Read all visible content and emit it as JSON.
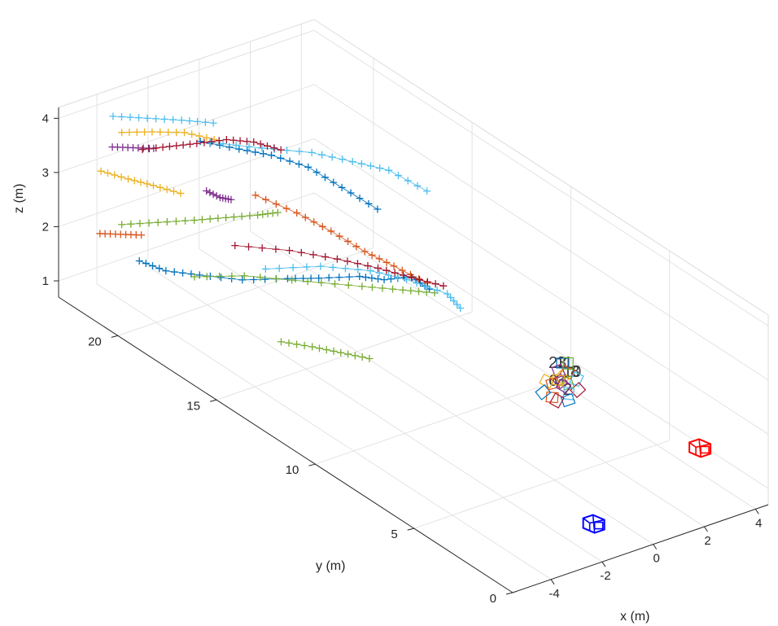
{
  "chart_data": {
    "type": "scatter",
    "title": "",
    "xlabel": "x (m)",
    "ylabel": "y (m)",
    "zlabel": "z (m)",
    "xlim": [
      -5.5,
      4.5
    ],
    "ylim": [
      0,
      23
    ],
    "zlim": [
      0.7,
      4.2
    ],
    "x_ticks": [
      "-4",
      "-2",
      "0",
      "2",
      "4"
    ],
    "y_ticks": [
      "0",
      "5",
      "10",
      "15",
      "20"
    ],
    "z_ticks": [
      "1",
      "2",
      "3",
      "4"
    ],
    "grid": true,
    "marker": "+",
    "series": [
      {
        "color": "#0072BD",
        "points": [
          [
            -3.5,
            21.5,
            1.4
          ],
          [
            -3,
            20.8,
            1.3
          ],
          [
            -2.3,
            20,
            1.3
          ],
          [
            -1.4,
            19,
            1.3
          ],
          [
            -0.4,
            18,
            1.4
          ],
          [
            0.2,
            17.2,
            1.5
          ],
          [
            1.1,
            16.3,
            1.6
          ],
          [
            1.6,
            15.7,
            1.6
          ],
          [
            2.2,
            15.1,
            1.7
          ],
          [
            2.6,
            14.7,
            1.5
          ]
        ]
      },
      {
        "color": "#0072BD",
        "points": [
          [
            -1.5,
            21,
            3.4
          ],
          [
            -0.6,
            20.2,
            3.3
          ],
          [
            0.2,
            19.6,
            3.2
          ],
          [
            1.1,
            18.9,
            3.0
          ],
          [
            1.8,
            18.1,
            2.7
          ],
          [
            2.5,
            17.2,
            2.4
          ]
        ]
      },
      {
        "color": "#D95319",
        "points": [
          [
            -4.5,
            22.2,
            1.9
          ],
          [
            -4,
            21.8,
            1.9
          ],
          [
            -3.5,
            21.4,
            1.9
          ]
        ]
      },
      {
        "color": "#D95319",
        "points": [
          [
            -0.5,
            19.5,
            2.6
          ],
          [
            0.5,
            18.7,
            2.3
          ],
          [
            1.3,
            18,
            2.0
          ],
          [
            2.0,
            17.2,
            1.7
          ],
          [
            2.6,
            16.5,
            1.5
          ],
          [
            3.2,
            15.6,
            1.3
          ]
        ]
      },
      {
        "color": "#EDB120",
        "points": [
          [
            -5,
            21.5,
            3.3
          ],
          [
            -4.4,
            20.9,
            3.2
          ],
          [
            -3.8,
            20.4,
            3.1
          ],
          [
            -3.2,
            19.8,
            3.0
          ]
        ]
      },
      {
        "color": "#EDB120",
        "points": [
          [
            -3.8,
            22,
            3.7
          ],
          [
            -3,
            21.5,
            3.7
          ],
          [
            -2.2,
            20.9,
            3.7
          ],
          [
            -1.5,
            20.3,
            3.6
          ]
        ]
      },
      {
        "color": "#7E2F8E",
        "points": [
          [
            -4.4,
            21.7,
            3.6
          ],
          [
            -3.9,
            21.3,
            3.6
          ],
          [
            -3.4,
            20.9,
            3.6
          ]
        ]
      },
      {
        "color": "#7E2F8E",
        "points": [
          [
            -1.8,
            20.3,
            2.7
          ],
          [
            -1.5,
            20,
            2.6
          ],
          [
            -1.3,
            19.7,
            2.6
          ]
        ]
      },
      {
        "color": "#77AC30",
        "points": [
          [
            -3.8,
            22,
            2.0
          ],
          [
            -3,
            21.2,
            2.1
          ],
          [
            -2.2,
            20.4,
            2.2
          ],
          [
            -1.5,
            19.7,
            2.3
          ],
          [
            -0.8,
            19,
            2.4
          ],
          [
            -0.4,
            18.5,
            2.5
          ]
        ]
      },
      {
        "color": "#77AC30",
        "points": [
          [
            -2.2,
            16,
            1.0
          ],
          [
            -1.6,
            15.2,
            1.0
          ],
          [
            -1.1,
            14.4,
            1.0
          ],
          [
            -0.6,
            13.6,
            1.0
          ]
        ]
      },
      {
        "color": "#77AC30",
        "points": [
          [
            -2.5,
            20,
            1.3
          ],
          [
            -1.4,
            18.9,
            1.4
          ],
          [
            0,
            17.5,
            1.4
          ],
          [
            1.2,
            16.3,
            1.4
          ],
          [
            2.1,
            15.4,
            1.4
          ],
          [
            2.8,
            14.7,
            1.4
          ]
        ]
      },
      {
        "color": "#4DBEEE",
        "points": [
          [
            -3.6,
            22.7,
            3.8
          ],
          [
            -2.8,
            22,
            3.8
          ],
          [
            -2.0,
            21.3,
            3.8
          ],
          [
            -1.3,
            20.6,
            3.8
          ]
        ]
      },
      {
        "color": "#4DBEEE",
        "points": [
          [
            -1.5,
            20.5,
            3.5
          ],
          [
            -0.4,
            19.3,
            3.5
          ],
          [
            0.7,
            18.2,
            3.5
          ],
          [
            1.6,
            17.3,
            3.4
          ],
          [
            2.4,
            16.5,
            3.3
          ],
          [
            3.2,
            15.6,
            3.0
          ]
        ]
      },
      {
        "color": "#4DBEEE",
        "points": [
          [
            -0.8,
            18.6,
            1.5
          ],
          [
            0.5,
            17.5,
            1.6
          ],
          [
            1.6,
            16.4,
            1.6
          ],
          [
            2.4,
            15.6,
            1.5
          ],
          [
            3.3,
            14.7,
            1.3
          ],
          [
            3.5,
            14.3,
            1.1
          ]
        ]
      },
      {
        "color": "#A2142F",
        "points": [
          [
            -3.3,
            21.6,
            3.4
          ],
          [
            -2.7,
            21,
            3.5
          ],
          [
            -2.1,
            20.4,
            3.6
          ],
          [
            -1.4,
            19.8,
            3.7
          ],
          [
            -0.8,
            19.2,
            3.7
          ],
          [
            -0.2,
            18.6,
            3.6
          ]
        ]
      },
      {
        "color": "#A2142F",
        "points": [
          [
            -1.3,
            19.5,
            1.8
          ],
          [
            -0.1,
            18.3,
            1.8
          ],
          [
            1.0,
            17.3,
            1.7
          ],
          [
            1.9,
            16.4,
            1.6
          ],
          [
            2.6,
            15.6,
            1.5
          ],
          [
            3.3,
            14.9,
            1.4
          ]
        ]
      }
    ]
  },
  "cluster_labels": [
    "23",
    "11",
    "10",
    "8",
    "6",
    "3",
    "2"
  ],
  "cameras": [
    {
      "name": "camera-blue",
      "color": "#0000FF",
      "position": [
        -1.2,
        1.5,
        0.9
      ]
    },
    {
      "name": "camera-red",
      "color": "#FF0000",
      "position": [
        4.5,
        3.5,
        0.9
      ]
    }
  ]
}
